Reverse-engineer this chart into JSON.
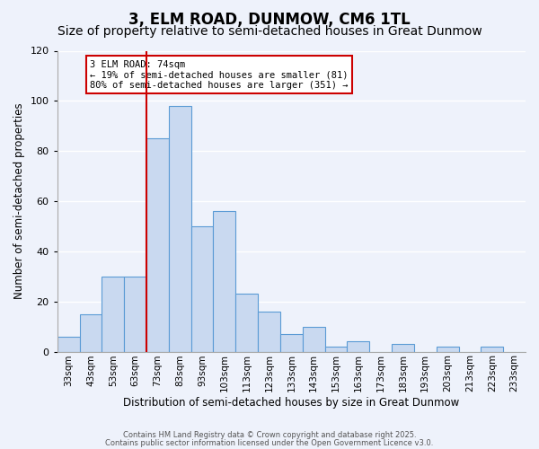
{
  "title": "3, ELM ROAD, DUNMOW, CM6 1TL",
  "subtitle": "Size of property relative to semi-detached houses in Great Dunmow",
  "xlabel": "Distribution of semi-detached houses by size in Great Dunmow",
  "ylabel": "Number of semi-detached properties",
  "bar_labels": [
    "33sqm",
    "43sqm",
    "53sqm",
    "63sqm",
    "73sqm",
    "83sqm",
    "93sqm",
    "103sqm",
    "113sqm",
    "123sqm",
    "133sqm",
    "143sqm",
    "153sqm",
    "163sqm",
    "173sqm",
    "183sqm",
    "193sqm",
    "203sqm",
    "213sqm",
    "223sqm",
    "233sqm"
  ],
  "bar_values": [
    6,
    15,
    30,
    30,
    85,
    98,
    50,
    56,
    23,
    16,
    7,
    10,
    2,
    4,
    0,
    3,
    0,
    2,
    0,
    2,
    0
  ],
  "bar_color": "#c9d9f0",
  "bar_edge_color": "#5b9bd5",
  "vline_x_index": 4,
  "vline_color": "#cc0000",
  "ylim": [
    0,
    120
  ],
  "yticks": [
    0,
    20,
    40,
    60,
    80,
    100,
    120
  ],
  "annotation_title": "3 ELM ROAD: 74sqm",
  "annotation_line1": "← 19% of semi-detached houses are smaller (81)",
  "annotation_line2": "80% of semi-detached houses are larger (351) →",
  "annotation_box_color": "#ffffff",
  "annotation_box_edge": "#cc0000",
  "footer1": "Contains HM Land Registry data © Crown copyright and database right 2025.",
  "footer2": "Contains public sector information licensed under the Open Government Licence v3.0.",
  "background_color": "#eef2fb",
  "grid_color": "#ffffff",
  "title_fontsize": 12,
  "subtitle_fontsize": 10
}
